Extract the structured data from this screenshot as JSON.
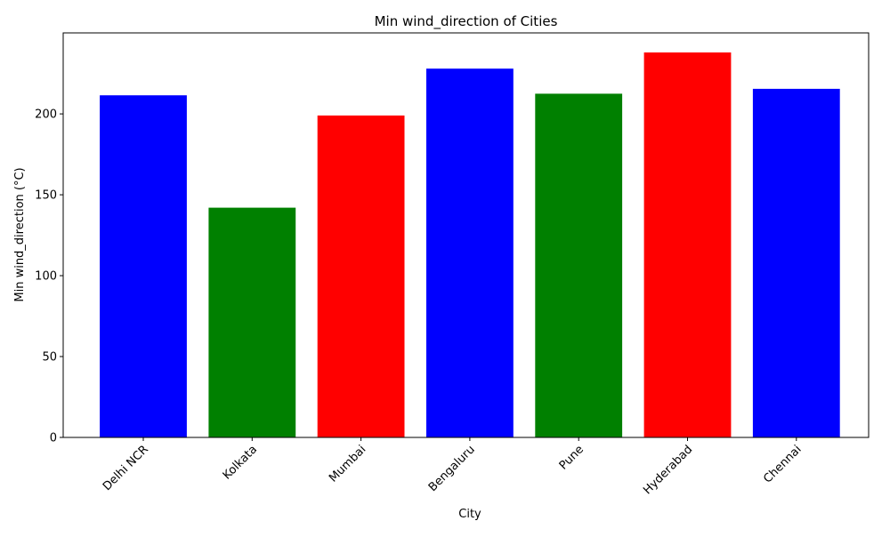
{
  "chart_data": {
    "type": "bar",
    "title": "Min wind_direction of Cities",
    "xlabel": "City",
    "ylabel": "Min wind_direction (°C)",
    "categories": [
      "Delhi NCR",
      "Kolkata",
      "Mumbai",
      "Bengaluru",
      "Pune",
      "Hyderabad",
      "Chennai"
    ],
    "values": [
      211.5,
      142.0,
      199.0,
      228.0,
      212.5,
      238.0,
      215.5
    ],
    "bar_colors": [
      "#0000ff",
      "#008000",
      "#ff0000",
      "#0000ff",
      "#008000",
      "#ff0000",
      "#0000ff"
    ],
    "ylim": [
      0,
      250
    ],
    "yticks": [
      0,
      50,
      100,
      150,
      200
    ],
    "grid": false,
    "legend": "none"
  }
}
